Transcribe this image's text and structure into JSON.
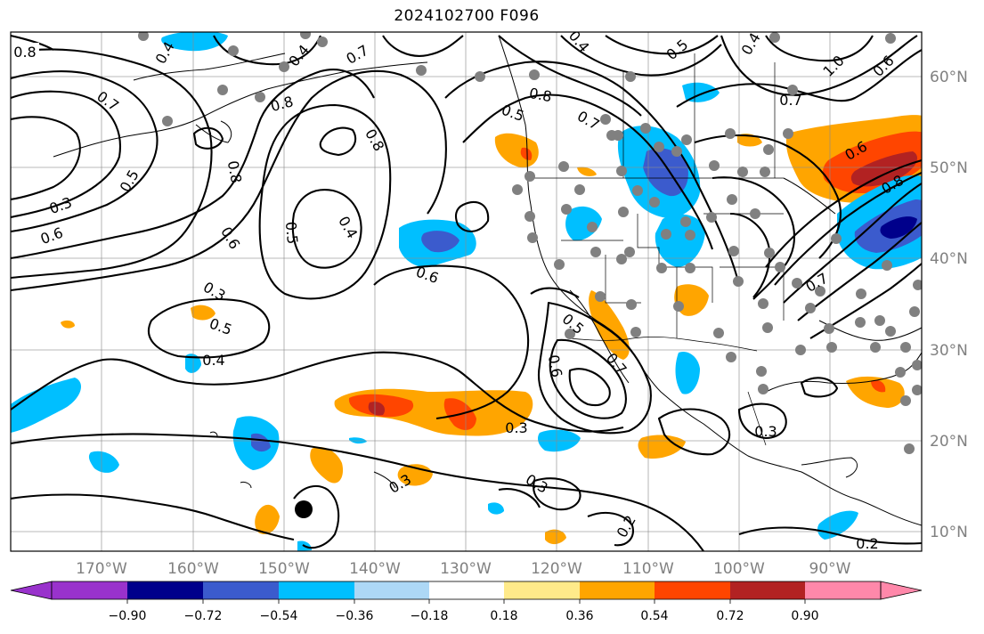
{
  "title": "2024102700 F096",
  "colors": {
    "neg_090": "#9932cc",
    "neg_072": "#00008b",
    "neg_054": "#3b5bcd",
    "neg_036": "#00bfff",
    "neg_018": "#add8f6",
    "neutral": "#ffffff",
    "pos_018": "#ffea8a",
    "pos_036": "#ffa500",
    "pos_054": "#ff4500",
    "pos_072": "#b22222",
    "pos_090": "#ff88aa",
    "station_dot": "#808080",
    "marker_dot": "#000000"
  },
  "lon_labels": [
    "170°W",
    "160°W",
    "150°W",
    "140°W",
    "130°W",
    "120°W",
    "110°W",
    "100°W",
    "90°W"
  ],
  "lat_labels": [
    "60°N",
    "50°N",
    "40°N",
    "30°N",
    "20°N",
    "10°N"
  ],
  "colorbar": {
    "ticks": [
      "−0.90",
      "−0.72",
      "−0.54",
      "−0.36",
      "−0.18",
      "0.18",
      "0.36",
      "0.54",
      "0.72",
      "0.90"
    ],
    "extend": "both"
  },
  "contour_labels": [
    "0.8",
    "0.7",
    "0.6",
    "0.5",
    "0.4",
    "0.3",
    "0.2",
    "1.0"
  ]
}
